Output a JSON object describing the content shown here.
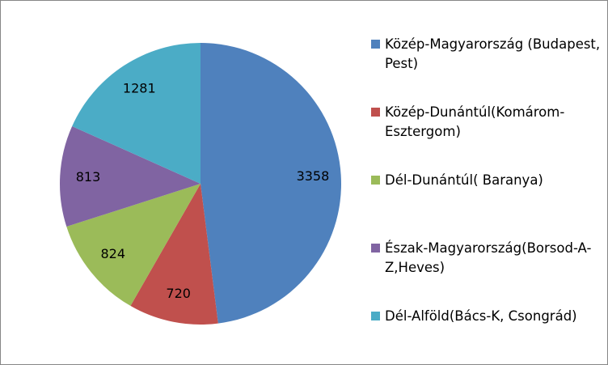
{
  "chart_data": {
    "type": "pie",
    "categories": [
      "Közép-Magyarország (Budapest, Pest)",
      "Közép-Dunántúl(Komárom-Esztergom)",
      "Dél-Dunántúl( Baranya)",
      "Észak-Magyarország(Borsod-A-Z,Heves)",
      "Dél-Alföld(Bács-K, Csongrád)"
    ],
    "values": [
      3358,
      720,
      824,
      813,
      1281
    ],
    "colors": [
      "#4f81bd",
      "#c0504d",
      "#9bbb59",
      "#8064a2",
      "#4bacc6"
    ],
    "legend": "right"
  }
}
